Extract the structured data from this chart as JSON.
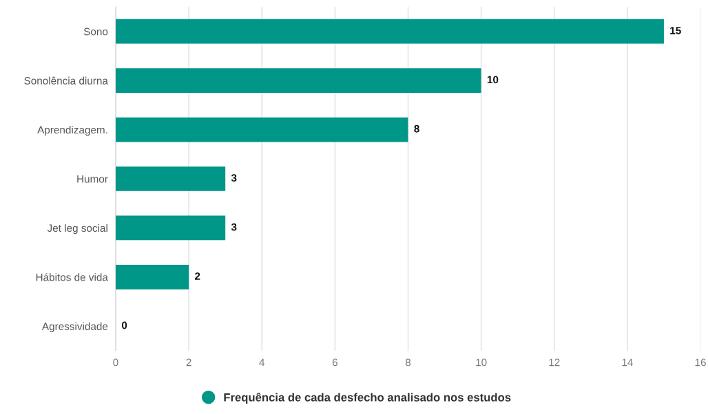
{
  "chart_data": {
    "type": "bar",
    "orientation": "horizontal",
    "categories": [
      "Sono",
      "Sonolência diurna",
      "Aprendizagem.",
      "Humor",
      "Jet leg social",
      "Hábitos de vida",
      "Agressividade"
    ],
    "series": [
      {
        "name": "Frequência de cada desfecho analisado nos estudos",
        "color": "#009688",
        "values": [
          15,
          10,
          8,
          3,
          3,
          2,
          0
        ]
      }
    ],
    "xlim": [
      0,
      16
    ],
    "xticks": [
      0,
      2,
      4,
      6,
      8,
      10,
      12,
      14,
      16
    ],
    "grid": "x",
    "legend": "bottom",
    "data_labels": true
  }
}
